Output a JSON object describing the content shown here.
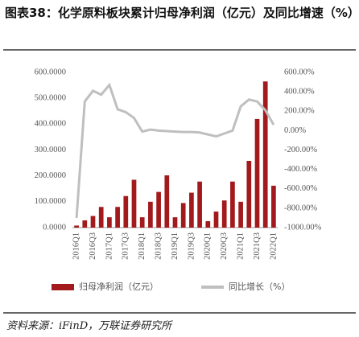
{
  "chart_data": {
    "type": "bar-line",
    "title": "图表38：化学原料板块累计归母净利润（亿元）及同比增速（%）",
    "source": "资料来源：iFinD，万联证券研究所",
    "categories": [
      "2016Q1",
      null,
      "2016Q3",
      null,
      "2017Q1",
      null,
      "2017Q3",
      null,
      "2018Q1",
      null,
      "2018Q3",
      null,
      "2019Q1",
      null,
      "2019Q3",
      null,
      "2020Q1",
      null,
      "2020Q3",
      null,
      "2021Q1",
      null,
      "2021Q3",
      null,
      "2022Q1"
    ],
    "series": [
      {
        "name": "归母净利润（亿元）",
        "color": "#a31a1c",
        "type": "bar",
        "values": [
          8,
          28,
          45,
          80,
          40,
          80,
          122,
          185,
          40,
          100,
          138,
          202,
          40,
          95,
          135,
          178,
          25,
          62,
          105,
          178,
          100,
          258,
          420,
          565,
          162
        ]
      },
      {
        "name": "同比增长（%）",
        "color": "#bfbfbf",
        "type": "line",
        "axis": "y2",
        "values": [
          -900,
          300,
          410,
          370,
          470,
          220,
          190,
          130,
          -10,
          10,
          0,
          -5,
          -10,
          -15,
          -15,
          -20,
          -40,
          -60,
          -30,
          0,
          250,
          320,
          300,
          210,
          60
        ]
      }
    ],
    "ylim": [
      0,
      600
    ],
    "yticks": [
      {
        "value": 0,
        "label": "0.0000"
      },
      {
        "value": 100,
        "label": "100.0000"
      },
      {
        "value": 200,
        "label": "200.0000"
      },
      {
        "value": 300,
        "label": "300.0000"
      },
      {
        "value": 400,
        "label": "400.0000"
      },
      {
        "value": 500,
        "label": "500.0000"
      },
      {
        "value": 600,
        "label": "600.0000"
      }
    ],
    "y2lim": [
      -1000,
      600
    ],
    "y2ticks": [
      {
        "value": -1000,
        "label": "-1000.00%"
      },
      {
        "value": -800,
        "label": "-800.00%"
      },
      {
        "value": -600,
        "label": "-600.00%"
      },
      {
        "value": -400,
        "label": "-400.00%"
      },
      {
        "value": -200,
        "label": "-200.00%"
      },
      {
        "value": 0,
        "label": "0.00%"
      },
      {
        "value": 200,
        "label": "200.00%"
      },
      {
        "value": 400,
        "label": "400.00%"
      },
      {
        "value": 600,
        "label": "600.00%"
      }
    ]
  }
}
